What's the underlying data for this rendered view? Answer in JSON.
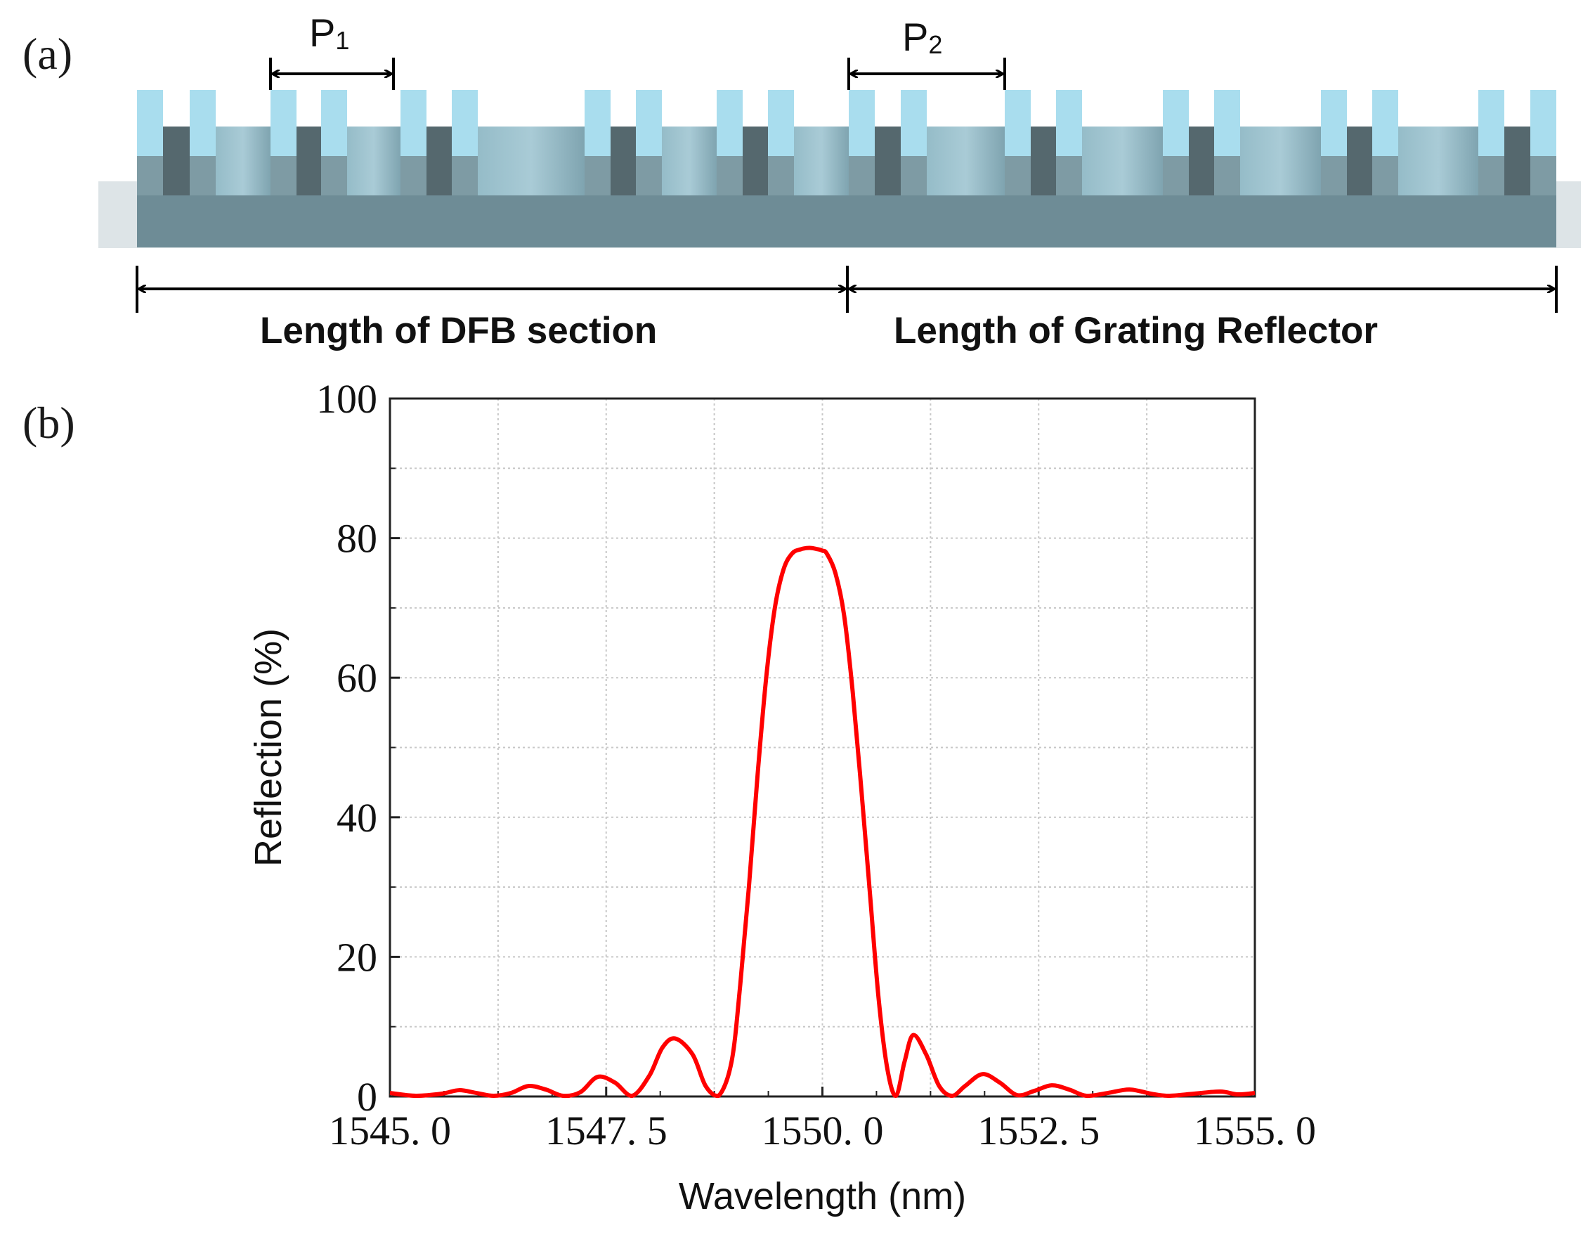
{
  "panel_a": {
    "label": "(a)",
    "pitch1": {
      "main": "P",
      "sub": "1"
    },
    "pitch2": {
      "main": "P",
      "sub": "2"
    },
    "dfb_label": "Length of DFB section",
    "reflector_label": "Length of Grating Reflector",
    "colors": {
      "tooth": "#a9ddee",
      "substrate": "#6e8c96",
      "groove_dark": "#55686e",
      "groove_light": "#8fb4c0"
    }
  },
  "panel_b": {
    "label": "(b)"
  },
  "chart_data": {
    "type": "line",
    "title": "",
    "xlabel": "Wavelength (nm)",
    "ylabel": "Reflection (%)",
    "xlim": [
      1545.0,
      1555.0
    ],
    "ylim": [
      0,
      100
    ],
    "x_ticks": [
      1545.0,
      1547.5,
      1550.0,
      1552.5,
      1555.0
    ],
    "x_tick_labels": [
      "1545. 0",
      "1547. 5",
      "1550. 0",
      "1552. 5",
      "1555. 0"
    ],
    "y_ticks": [
      0,
      20,
      40,
      60,
      80,
      100
    ],
    "y_tick_labels": [
      "0",
      "20",
      "40",
      "60",
      "80",
      "100"
    ],
    "grid": true,
    "series": [
      {
        "name": "Reflection",
        "color": "#ff0000",
        "x": [
          1545.0,
          1545.3,
          1545.6,
          1545.8,
          1546.0,
          1546.2,
          1546.4,
          1546.6,
          1546.8,
          1547.0,
          1547.2,
          1547.4,
          1547.6,
          1547.8,
          1548.0,
          1548.15,
          1548.3,
          1548.5,
          1548.65,
          1548.8,
          1548.95,
          1549.05,
          1549.15,
          1549.25,
          1549.35,
          1549.45,
          1549.55,
          1549.65,
          1549.75,
          1549.85,
          1549.95,
          1550.0,
          1550.05,
          1550.15,
          1550.25,
          1550.35,
          1550.45,
          1550.55,
          1550.65,
          1550.75,
          1550.85,
          1550.95,
          1551.05,
          1551.2,
          1551.35,
          1551.5,
          1551.65,
          1551.85,
          1552.05,
          1552.25,
          1552.45,
          1552.65,
          1552.85,
          1553.05,
          1553.3,
          1553.55,
          1553.8,
          1554.0,
          1554.3,
          1554.6,
          1554.8,
          1555.0
        ],
        "y": [
          0.5,
          0.1,
          0.4,
          0.9,
          0.5,
          0.1,
          0.5,
          1.5,
          1.0,
          0.1,
          0.6,
          2.8,
          2.0,
          0.1,
          3.0,
          7.0,
          8.3,
          6.0,
          1.5,
          0.1,
          5.0,
          16.0,
          30.0,
          46.0,
          60.0,
          70.0,
          75.5,
          77.8,
          78.4,
          78.6,
          78.4,
          78.2,
          77.8,
          75.0,
          69.0,
          58.0,
          44.0,
          29.0,
          14.0,
          4.0,
          0.1,
          5.0,
          8.8,
          6.0,
          1.5,
          0.1,
          1.5,
          3.2,
          2.0,
          0.2,
          0.8,
          1.6,
          1.0,
          0.1,
          0.5,
          1.0,
          0.4,
          0.1,
          0.4,
          0.7,
          0.3,
          0.5
        ]
      }
    ]
  }
}
